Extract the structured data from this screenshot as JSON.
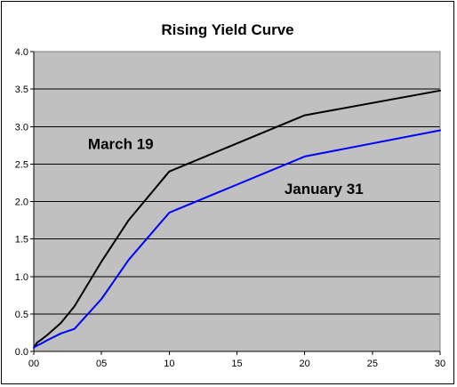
{
  "chart_data": {
    "type": "line",
    "title": "Rising Yield Curve",
    "xlabel": "",
    "ylabel": "",
    "xlim": [
      0,
      30
    ],
    "ylim": [
      0,
      4.0
    ],
    "grid": true,
    "x_ticks": [
      {
        "value": 0,
        "label": "00"
      },
      {
        "value": 5,
        "label": "05"
      },
      {
        "value": 10,
        "label": "10"
      },
      {
        "value": 15,
        "label": "15"
      },
      {
        "value": 20,
        "label": "20"
      },
      {
        "value": 25,
        "label": "25"
      },
      {
        "value": 30,
        "label": "30"
      }
    ],
    "y_ticks": [
      {
        "value": 0,
        "label": "0.0"
      },
      {
        "value": 0.5,
        "label": "0.5"
      },
      {
        "value": 1.0,
        "label": "1.0"
      },
      {
        "value": 1.5,
        "label": "1.5"
      },
      {
        "value": 2.0,
        "label": "2.0"
      },
      {
        "value": 2.5,
        "label": "2.5"
      },
      {
        "value": 3.0,
        "label": "3.0"
      },
      {
        "value": 3.5,
        "label": "3.5"
      },
      {
        "value": 4.0,
        "label": "4.0"
      }
    ],
    "series": [
      {
        "name": "March 19",
        "color": "#000000",
        "points": [
          {
            "x": 0,
            "y": 0.05
          },
          {
            "x": 0.25,
            "y": 0.12
          },
          {
            "x": 0.5,
            "y": 0.15
          },
          {
            "x": 1,
            "y": 0.22
          },
          {
            "x": 2,
            "y": 0.38
          },
          {
            "x": 3,
            "y": 0.6
          },
          {
            "x": 5,
            "y": 1.2
          },
          {
            "x": 7,
            "y": 1.75
          },
          {
            "x": 10,
            "y": 2.4
          },
          {
            "x": 20,
            "y": 3.15
          },
          {
            "x": 30,
            "y": 3.48
          }
        ]
      },
      {
        "name": "January 31",
        "color": "#0000ff",
        "points": [
          {
            "x": 0,
            "y": 0.05
          },
          {
            "x": 0.25,
            "y": 0.08
          },
          {
            "x": 0.5,
            "y": 0.1
          },
          {
            "x": 1,
            "y": 0.15
          },
          {
            "x": 2,
            "y": 0.24
          },
          {
            "x": 3,
            "y": 0.3
          },
          {
            "x": 5,
            "y": 0.7
          },
          {
            "x": 7,
            "y": 1.22
          },
          {
            "x": 10,
            "y": 1.85
          },
          {
            "x": 20,
            "y": 2.6
          },
          {
            "x": 30,
            "y": 2.95
          }
        ]
      }
    ],
    "annotations": [
      {
        "text": "March 19",
        "x": 4,
        "y": 2.7
      },
      {
        "text": "January 31",
        "x": 18.5,
        "y": 2.1
      }
    ],
    "colors": {
      "plot_background": "#c0c0c0",
      "gridline": "#000000"
    }
  }
}
